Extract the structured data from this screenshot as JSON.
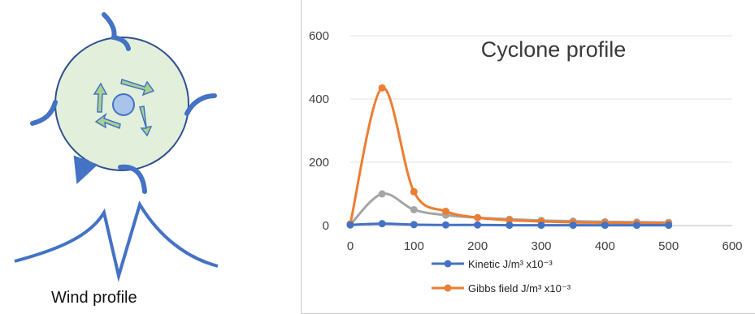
{
  "diagram": {
    "caption": "Wind profile",
    "colors": {
      "wind": "#4472c4",
      "disc_fill": "#e2efda",
      "disc_stroke": "#2f4f8f",
      "core_fill": "#a9c4eb",
      "arrow_fill": "#a9d18e"
    }
  },
  "chart_data": {
    "type": "line",
    "title": "Cyclone profile",
    "xlim": [
      0,
      600
    ],
    "ylim": [
      0,
      600
    ],
    "x_ticks": [
      "0",
      "100",
      "200",
      "300",
      "400",
      "500",
      "600"
    ],
    "y_ticks": [
      "0",
      "200",
      "400",
      "600"
    ],
    "grid": "horizontal",
    "legend_position": "bottom",
    "series": [
      {
        "name": "Kinetic J/m³ x10⁻³",
        "color": "#4472c4",
        "x": [
          0,
          50,
          100,
          150,
          200,
          250,
          300,
          350,
          400,
          450,
          500
        ],
        "y": [
          2,
          6,
          3,
          2,
          2,
          1,
          1,
          1,
          1,
          1,
          1
        ]
      },
      {
        "name": "Gibbs field J/m³ x10⁻³",
        "color": "#ed7d31",
        "x": [
          0,
          50,
          100,
          150,
          200,
          250,
          300,
          350,
          400,
          450,
          500
        ],
        "y": [
          5,
          435,
          107,
          45,
          25,
          17,
          13,
          10,
          9,
          8,
          7
        ]
      },
      {
        "color": "#a5a5a5",
        "x": [
          0,
          50,
          100,
          150,
          200,
          250,
          300,
          350,
          400,
          450,
          500
        ],
        "y": [
          3,
          100,
          50,
          33,
          25,
          20,
          16,
          14,
          12,
          11,
          10
        ]
      }
    ]
  }
}
